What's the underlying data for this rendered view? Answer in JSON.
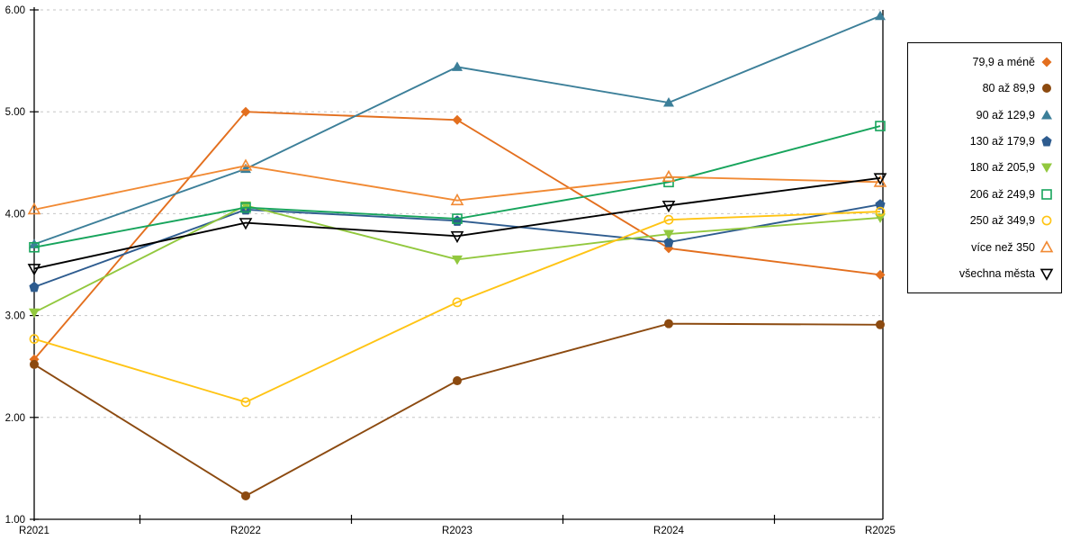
{
  "chart_data": {
    "type": "line",
    "title": "",
    "xlabel": "",
    "ylabel": "",
    "x_categories": [
      "R2021",
      "R2022",
      "R2023",
      "R2024",
      "R2025"
    ],
    "y_tick_labels": [
      "6.00",
      "5.00",
      "4.00",
      "3.00",
      "2.00",
      "1.00"
    ],
    "ylim": [
      1.0,
      6.0
    ],
    "grid": "horizontal-dashed",
    "grid_color": "#c6c6c6",
    "axis_color": "#000000",
    "legend_position": "right",
    "series": [
      {
        "name": "79,9 a méně",
        "marker": "diamond-filled",
        "color": "#e36f1e",
        "values": [
          2.57,
          5.0,
          4.92,
          3.66,
          3.4
        ]
      },
      {
        "name": "80 až 89,9",
        "marker": "circle-filled",
        "color": "#8c4a10",
        "values": [
          2.52,
          1.23,
          2.36,
          2.92,
          2.91
        ]
      },
      {
        "name": "90 až 129,9",
        "marker": "triangle-up-filled",
        "color": "#3c7f99",
        "values": [
          3.7,
          4.44,
          5.44,
          5.09,
          5.94
        ]
      },
      {
        "name": "130 až 179,9",
        "marker": "pentagon-filled",
        "color": "#2e5c8f",
        "values": [
          3.28,
          4.04,
          3.93,
          3.72,
          4.09
        ]
      },
      {
        "name": "180 až 205,9",
        "marker": "triangle-down-filled",
        "color": "#92c83e",
        "values": [
          3.03,
          4.08,
          3.55,
          3.8,
          3.96
        ]
      },
      {
        "name": "206 až 249,9",
        "marker": "square-open",
        "color": "#17a45c",
        "values": [
          3.67,
          4.06,
          3.95,
          4.31,
          4.86
        ]
      },
      {
        "name": "250 až 349,9",
        "marker": "circle-open",
        "color": "#ffc414",
        "values": [
          2.77,
          2.15,
          3.13,
          3.94,
          4.02
        ]
      },
      {
        "name": "více než 350",
        "marker": "triangle-up-open",
        "color": "#f18a34",
        "values": [
          4.04,
          4.47,
          4.13,
          4.36,
          4.31
        ]
      },
      {
        "name": "všechna města",
        "marker": "triangle-down-open",
        "color": "#000000",
        "values": [
          3.46,
          3.91,
          3.78,
          4.08,
          4.35
        ]
      }
    ]
  }
}
